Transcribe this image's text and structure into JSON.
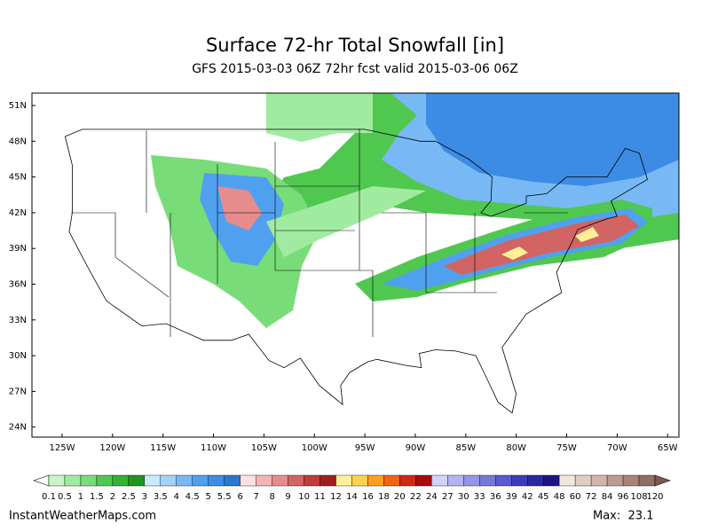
{
  "header": {
    "title": "Surface 72-hr Total Snowfall [in]",
    "subtitle": "GFS 2015-03-03 06Z 72hr fcst valid 2015-03-06 06Z"
  },
  "map": {
    "lat_labels": [
      "51N",
      "48N",
      "45N",
      "42N",
      "39N",
      "36N",
      "33N",
      "30N",
      "27N",
      "24N"
    ],
    "lon_labels": [
      "125W",
      "120W",
      "115W",
      "110W",
      "105W",
      "100W",
      "95W",
      "90W",
      "85W",
      "80W",
      "75W",
      "70W",
      "65W"
    ]
  },
  "colorbar": {
    "labels": [
      "0.1",
      "0.5",
      "1",
      "1.5",
      "2",
      "2.5",
      "3",
      "3.5",
      "4",
      "4.5",
      "5",
      "5.5",
      "6",
      "7",
      "8",
      "9",
      "10",
      "11",
      "12",
      "14",
      "16",
      "18",
      "20",
      "22",
      "24",
      "27",
      "30",
      "33",
      "36",
      "39",
      "42",
      "45",
      "48",
      "60",
      "72",
      "84",
      "96",
      "108",
      "120"
    ],
    "colors": [
      "#c8f5c8",
      "#a0eba0",
      "#78dc78",
      "#50c850",
      "#32b432",
      "#1e961e",
      "#c8ebff",
      "#a0d2fa",
      "#78b9f5",
      "#50a0f0",
      "#3c8ce6",
      "#2878d2",
      "#ffe1e1",
      "#f5b4b4",
      "#e68c8c",
      "#d26464",
      "#be3c3c",
      "#a01e1e",
      "#fff096",
      "#ffd250",
      "#ffa01e",
      "#f06414",
      "#d22814",
      "#aa0a0a",
      "#d2d2fa",
      "#b4b4f0",
      "#9696e6",
      "#7878dc",
      "#5a5ad2",
      "#3c3cbe",
      "#2828a0",
      "#1e1482",
      "#f0e6dc",
      "#e1cdc3",
      "#d2b4aa",
      "#be9b91",
      "#aa8278",
      "#916e64"
    ]
  },
  "footer": {
    "source": "InstantWeatherMaps.com",
    "max": "Max:  23.1"
  }
}
